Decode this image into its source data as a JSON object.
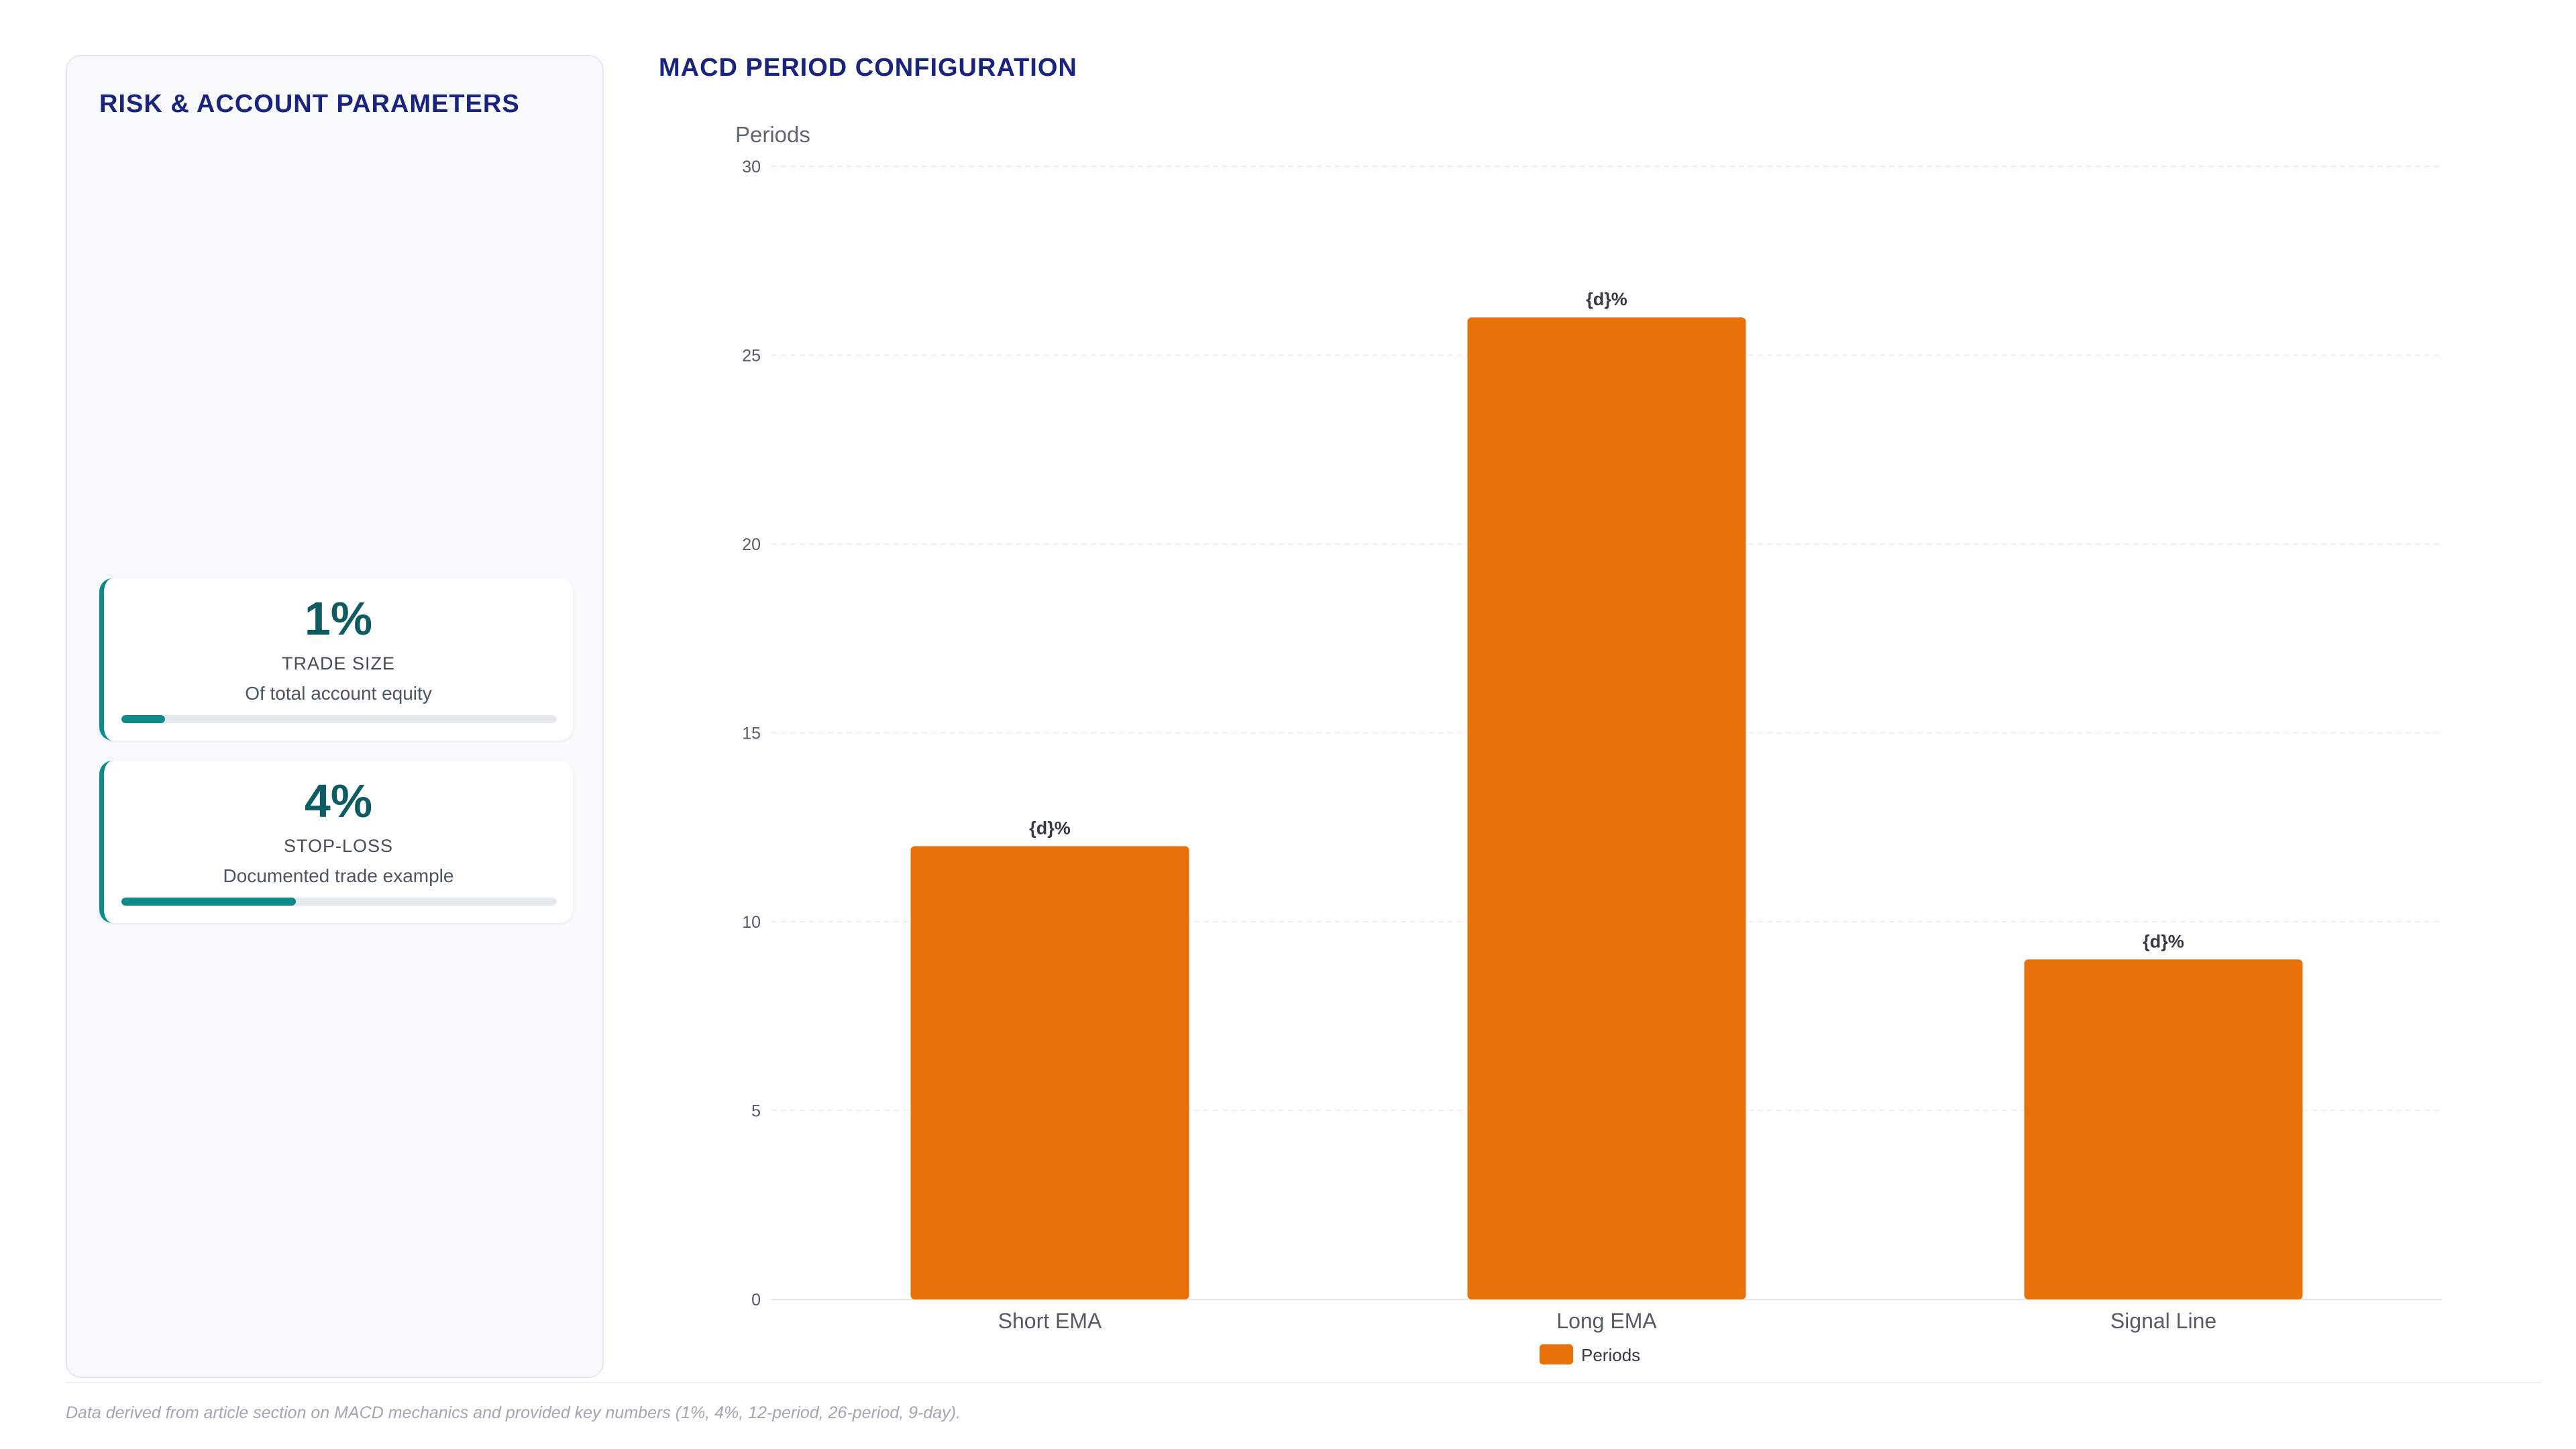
{
  "left_panel": {
    "title": "RISK & ACCOUNT PARAMETERS",
    "cards": [
      {
        "value": "1%",
        "label": "TRADE SIZE",
        "description": "Of total account equity",
        "progress_percent": 10
      },
      {
        "value": "4%",
        "label": "STOP-LOSS",
        "description": "Documented trade example",
        "progress_percent": 40
      }
    ],
    "accent_color": "#0e8a8a"
  },
  "chart_title": "MACD PERIOD CONFIGURATION",
  "chart_data": {
    "type": "bar",
    "title": "MACD PERIOD CONFIGURATION",
    "categories": [
      "Short EMA",
      "Long EMA",
      "Signal Line"
    ],
    "series": [
      {
        "name": "Periods",
        "values": [
          12,
          26,
          9
        ],
        "color": "#e8710a"
      }
    ],
    "data_labels": [
      "{d}%",
      "{d}%",
      "{d}%"
    ],
    "ylabel": "Periods",
    "xlabel": "",
    "ylim": [
      0,
      30
    ],
    "yticks": [
      0,
      5,
      10,
      15,
      20,
      25,
      30
    ],
    "grid": true,
    "legend_position": "bottom-center"
  },
  "footnote": "Data derived from article section on MACD mechanics and provided key numbers (1%, 4%, 12-period, 26-period, 9-day)."
}
